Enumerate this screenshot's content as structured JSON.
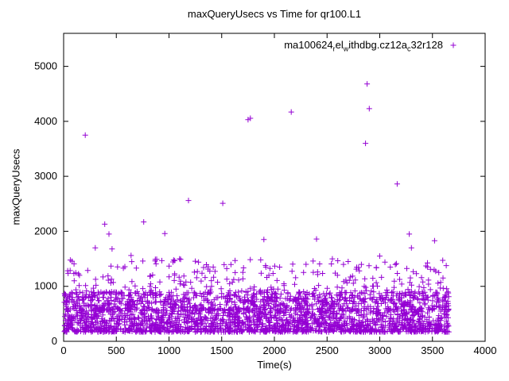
{
  "title": "maxQueryUsecs vs Time for qr100.L1",
  "chart_data": {
    "type": "scatter",
    "title": "maxQueryUsecs vs Time for qr100.L1",
    "xlabel": "Time(s)",
    "ylabel": "maxQueryUsecs",
    "xlim": [
      0,
      4000
    ],
    "ylim": [
      0,
      5600
    ],
    "xticks": [
      0,
      500,
      1000,
      1500,
      2000,
      2500,
      3000,
      3500,
      4000
    ],
    "yticks": [
      0,
      1000,
      2000,
      3000,
      4000,
      5000
    ],
    "grid": false,
    "legend": {
      "position": "top-right",
      "full_label": "ma100624_rel_withdbg.cz12a_c32r128",
      "parts": [
        {
          "t": "ma100624"
        },
        {
          "t": "r",
          "sub": true
        },
        {
          "t": "el"
        },
        {
          "t": "w",
          "sub": true
        },
        {
          "t": "ithdbg.cz12a"
        },
        {
          "t": "c",
          "sub": true
        },
        {
          "t": "32r128"
        }
      ]
    },
    "marker": {
      "shape": "plus",
      "color": "#9400d3",
      "size": 7
    },
    "series": [
      {
        "name": "ma100624_rel_withdbg.cz12a_c32r128",
        "outliers": [
          [
            205,
            3750
          ],
          [
            390,
            2130
          ],
          [
            430,
            1950
          ],
          [
            300,
            1700
          ],
          [
            460,
            1680
          ],
          [
            760,
            2170
          ],
          [
            960,
            1960
          ],
          [
            640,
            1560
          ],
          [
            870,
            1490
          ],
          [
            1100,
            1500
          ],
          [
            1185,
            2560
          ],
          [
            1510,
            2510
          ],
          [
            1280,
            1440
          ],
          [
            1420,
            1350
          ],
          [
            1750,
            4030
          ],
          [
            1772,
            4055
          ],
          [
            2160,
            4170
          ],
          [
            1900,
            1850
          ],
          [
            2400,
            1860
          ],
          [
            2300,
            1400
          ],
          [
            2550,
            1500
          ],
          [
            2050,
            1350
          ],
          [
            2880,
            4680
          ],
          [
            2900,
            4230
          ],
          [
            2865,
            3600
          ],
          [
            3165,
            2860
          ],
          [
            3000,
            1550
          ],
          [
            3100,
            1350
          ],
          [
            3280,
            1950
          ],
          [
            3300,
            1700
          ],
          [
            3520,
            1830
          ],
          [
            2700,
            1450
          ],
          [
            150,
            1200
          ],
          [
            100,
            1100
          ],
          [
            3560,
            1250
          ],
          [
            3600,
            1150
          ]
        ],
        "background": {
          "seed": 42,
          "count": 2800,
          "x_min": 3,
          "x_max": 3655,
          "bands": [
            {
              "weight": 0.62,
              "base": 170,
              "spread": 430,
              "pow": 1.6
            },
            {
              "weight": 0.3,
              "base": 550,
              "spread": 350,
              "pow": 1.0
            },
            {
              "weight": 0.08,
              "base": 880,
              "spread": 620,
              "pow": 1.4
            }
          ]
        }
      }
    ]
  }
}
